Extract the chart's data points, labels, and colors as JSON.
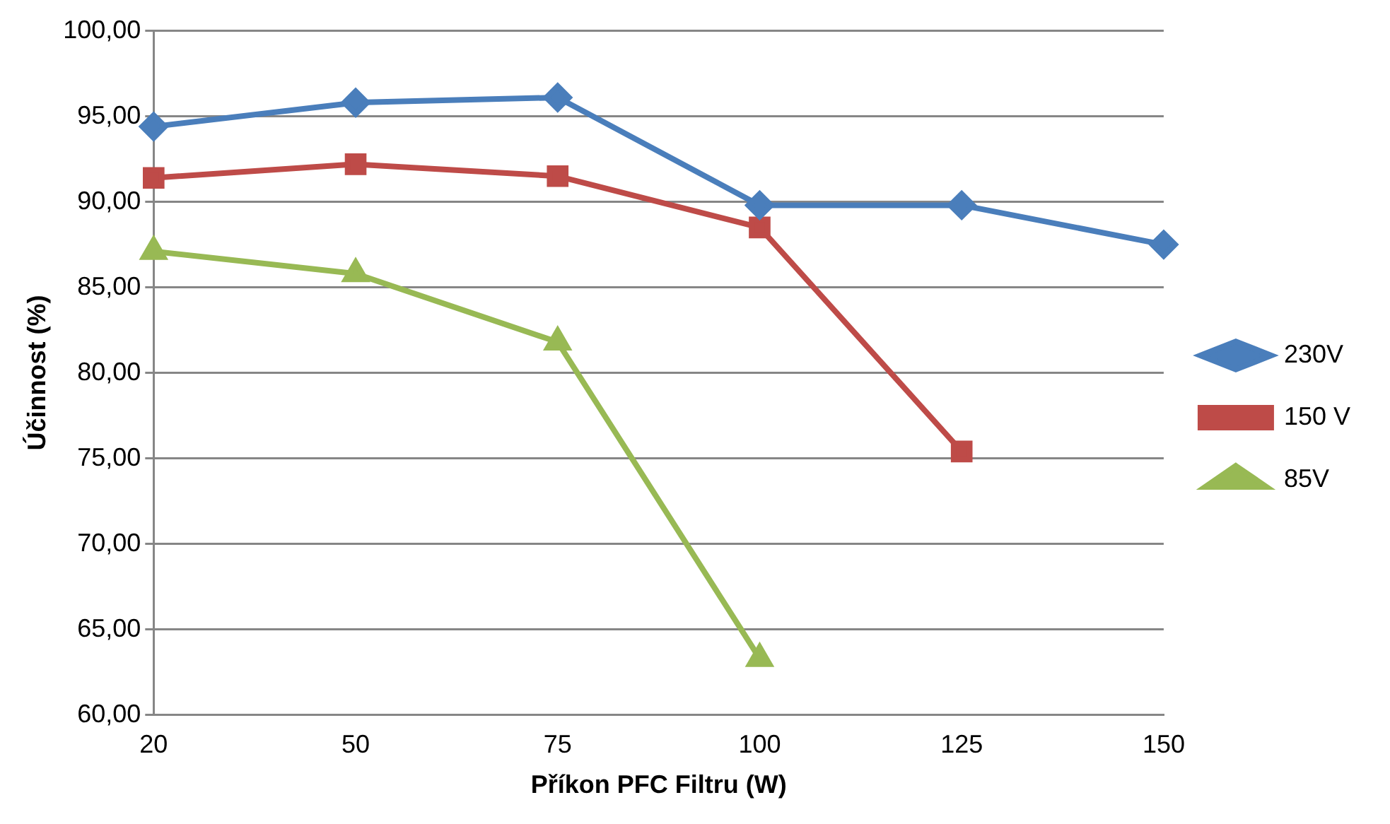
{
  "chart_data": {
    "type": "line",
    "xlabel": "Příkon PFC Filtru (W)",
    "ylabel": "Účinnost (%)",
    "categories": [
      "20",
      "50",
      "75",
      "100",
      "125",
      "150"
    ],
    "series": [
      {
        "name": "230V",
        "color": "#4a7ebb",
        "marker": "diamond",
        "values": [
          94.4,
          95.8,
          96.1,
          89.8,
          89.8,
          87.5
        ]
      },
      {
        "name": "150 V",
        "color": "#be4b48",
        "marker": "square",
        "values": [
          91.4,
          92.2,
          91.5,
          88.5,
          75.4,
          null
        ]
      },
      {
        "name": "85V",
        "color": "#98b954",
        "marker": "triangle",
        "values": [
          87.1,
          85.8,
          81.8,
          63.3,
          null,
          null
        ]
      }
    ],
    "ylim": [
      60,
      100
    ],
    "yticks": [
      {
        "value": 60,
        "label": "60,00"
      },
      {
        "value": 65,
        "label": "65,00"
      },
      {
        "value": 70,
        "label": "70,00"
      },
      {
        "value": 75,
        "label": "75,00"
      },
      {
        "value": 80,
        "label": "80,00"
      },
      {
        "value": 85,
        "label": "85,00"
      },
      {
        "value": 90,
        "label": "90,00"
      },
      {
        "value": 95,
        "label": "95,00"
      },
      {
        "value": 100,
        "label": "100,00"
      }
    ],
    "grid": "y",
    "legend": "right"
  }
}
